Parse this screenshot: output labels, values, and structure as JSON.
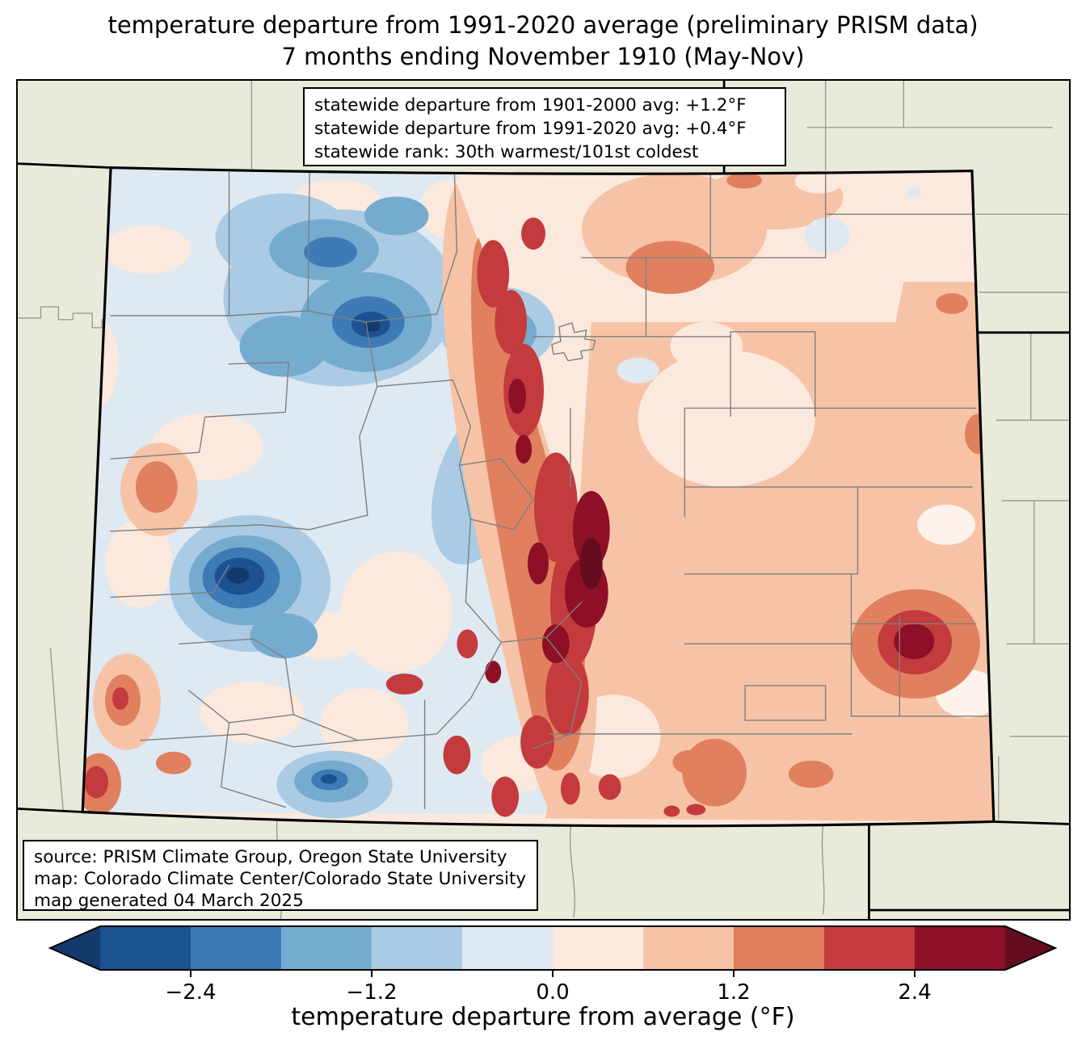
{
  "title": {
    "line1": "temperature departure from 1991-2020 average (preliminary PRISM data)",
    "line2": "7 months ending November 1910 (May-Nov)"
  },
  "stats_box": {
    "lines": [
      "statewide departure from 1901-2000 avg: +1.2°F",
      "statewide departure from 1991-2020 avg: +0.4°F",
      "statewide rank: 30th warmest/101st coldest"
    ]
  },
  "source_box": {
    "lines": [
      "source: PRISM Climate Group, Oregon State University",
      "map: Colorado Climate Center/Colorado State University",
      "map generated 04 March 2025"
    ]
  },
  "colorbar": {
    "axis_label": "temperature departure from average (°F)",
    "tick_labels": [
      "−2.4",
      "−1.2",
      "0.0",
      "1.2",
      "2.4"
    ],
    "bin_edges": [
      -3.0,
      -2.4,
      -1.8,
      -1.2,
      -0.6,
      0.0,
      0.6,
      1.2,
      1.8,
      2.4,
      3.0
    ],
    "bin_colors": [
      "#1c5192",
      "#3d7ab6",
      "#76abd0",
      "#aacbe3",
      "#dee9f2",
      "#fbe9dd",
      "#f7c3a6",
      "#e0805f",
      "#c33b3d",
      "#8d1026"
    ],
    "under_arrow_color": "#133a6b",
    "over_arrow_color": "#650d20"
  },
  "map": {
    "region": "Colorado",
    "projection_note": "state map with county boundaries",
    "palette": {
      "under": "#133a6b",
      "b1": "#1c5192",
      "b2": "#3d7ab6",
      "b3": "#76abd0",
      "b4": "#aacbe3",
      "b5": "#dee9f2",
      "pale": "#fbe9dd",
      "peach": "#f7c3a6",
      "salmon": "#e0805f",
      "red": "#c33b3d",
      "dred": "#8d1026",
      "over": "#650d20",
      "warmwhite": "#fdf3ec",
      "beige": "#eaeada",
      "county": "#7f7f7f",
      "county_out": "#9a9a9a"
    }
  }
}
